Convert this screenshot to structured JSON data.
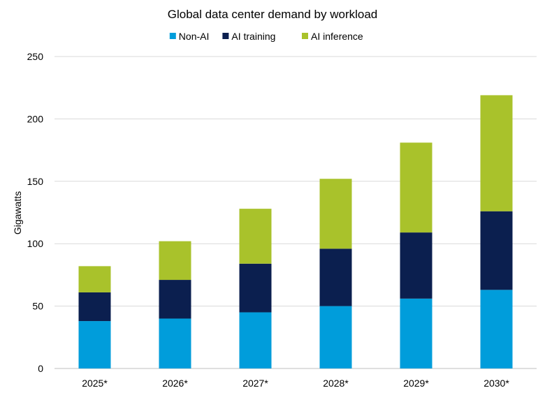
{
  "chart_data": {
    "type": "bar",
    "stacked": true,
    "title": "Global data center demand by workload",
    "xlabel": "",
    "ylabel": "Gigawatts",
    "ylim": [
      0,
      250
    ],
    "yticks": [
      0,
      50,
      100,
      150,
      200,
      250
    ],
    "grid": true,
    "legend_position": "top",
    "categories": [
      "2025*",
      "2026*",
      "2027*",
      "2028*",
      "2029*",
      "2030*"
    ],
    "series": [
      {
        "name": "Non-AI",
        "color": "#009ddb",
        "values": [
          38,
          40,
          45,
          50,
          56,
          63
        ]
      },
      {
        "name": "AI training",
        "color": "#0b1f4f",
        "values": [
          23,
          31,
          39,
          46,
          53,
          63
        ]
      },
      {
        "name": "AI inference",
        "color": "#a9c22b",
        "values": [
          21,
          31,
          44,
          56,
          72,
          93
        ]
      }
    ]
  }
}
